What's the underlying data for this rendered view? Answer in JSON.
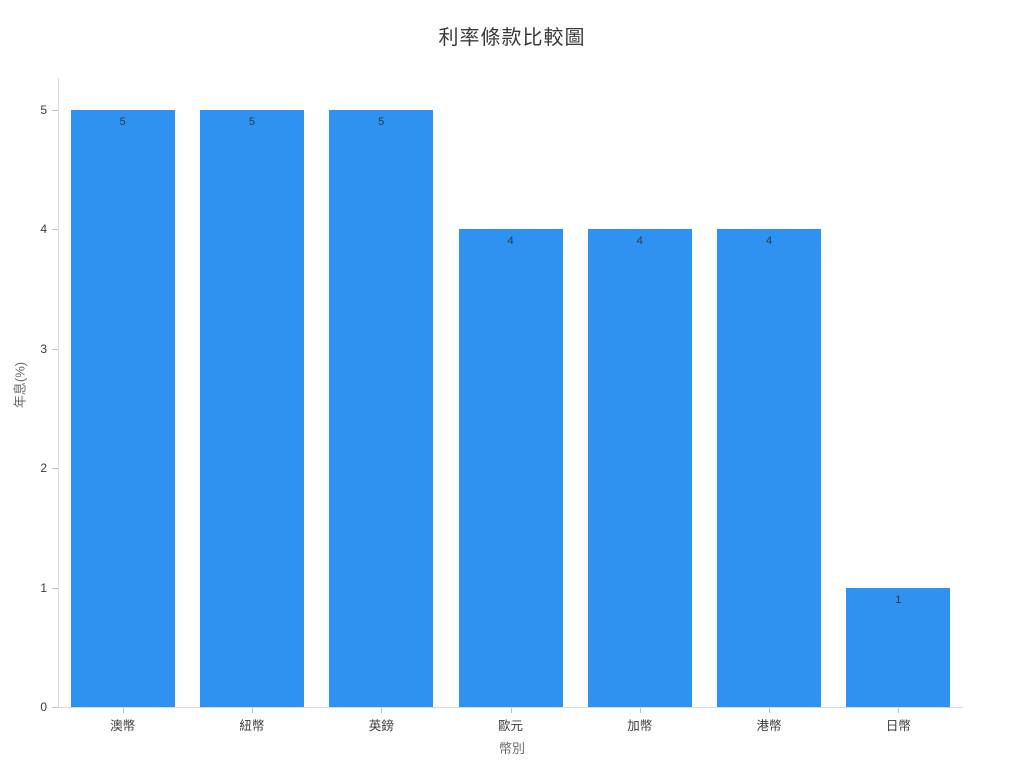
{
  "chart_data": {
    "type": "bar",
    "title": "利率條款比較圖",
    "xlabel": "幣別",
    "ylabel": "年息(%)",
    "categories": [
      "澳幣",
      "紐幣",
      "英鎊",
      "歐元",
      "加幣",
      "港幣",
      "日幣"
    ],
    "values": [
      5,
      5,
      5,
      4,
      4,
      4,
      1
    ],
    "bar_labels": [
      "5",
      "5",
      "5",
      "4",
      "4",
      "4",
      "1"
    ],
    "ylim": [
      0,
      5
    ],
    "yticks": [
      0,
      1,
      2,
      3,
      4,
      5
    ],
    "grid": false,
    "legend": "none",
    "colors": {
      "bar": "#2f92f0",
      "axis_line": "#d9d9d9",
      "tick_mark": "#bfbfbf",
      "tick_label": "#3b3b3b",
      "axis_title": "#6b6b6b",
      "title": "#3a3a3a",
      "value_label": "#2e3a46"
    }
  }
}
